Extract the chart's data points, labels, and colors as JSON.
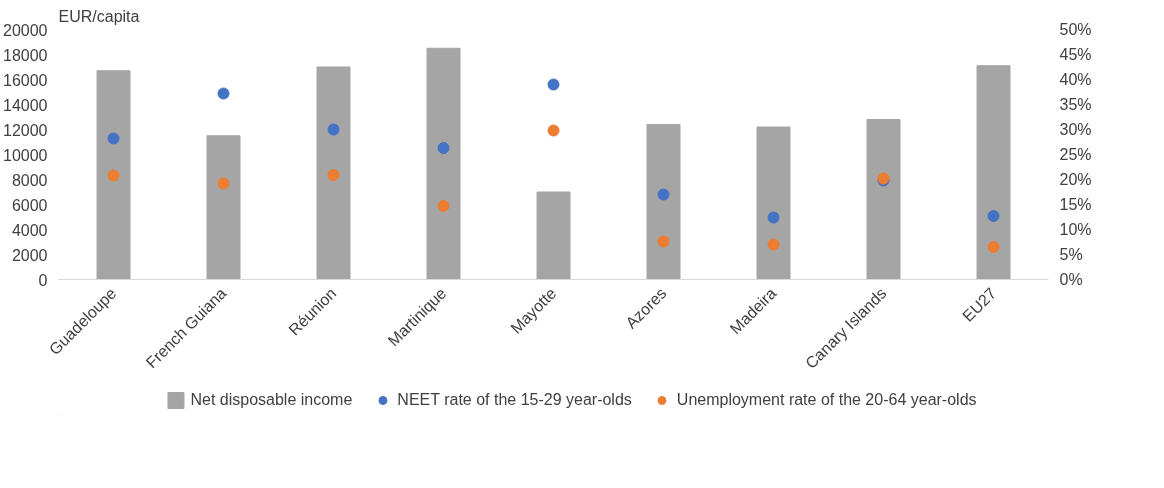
{
  "chart_data": {
    "type": "bar",
    "ylabel": "EUR/capita",
    "categories": [
      "Guadeloupe",
      "French Guiana",
      "Réunion",
      "Martinique",
      "Mayotte",
      "Azores",
      "Madeira",
      "Canary Islands",
      "EU27"
    ],
    "series": [
      {
        "name": "Net disposable income",
        "color": "#a5a5a5",
        "values": [
          16700,
          11500,
          17000,
          18500,
          7000,
          12400,
          12200,
          12800,
          17100
        ]
      },
      {
        "name": "NEET rate of the 15-29 year-olds",
        "color": "#4472c4",
        "type": "scatter",
        "axis": "y2",
        "values": [
          28.2,
          37.2,
          30.0,
          26.3,
          39.0,
          17.0,
          12.4,
          19.8,
          12.7
        ]
      },
      {
        "name": "Unemployment rate of the 20-64 year-olds",
        "color": "#ed7d31",
        "type": "scatter",
        "axis": "y2",
        "values": [
          20.8,
          19.2,
          20.9,
          14.7,
          29.8,
          7.6,
          7.0,
          20.2,
          6.5
        ]
      }
    ],
    "ylim": [
      0,
      20000
    ],
    "yticks": [
      0,
      2000,
      4000,
      6000,
      8000,
      10000,
      12000,
      14000,
      16000,
      18000,
      20000
    ],
    "y2lim": [
      0,
      50
    ],
    "y2ticks": [
      {
        "value": 0,
        "label": "0%"
      },
      {
        "value": 5,
        "label": "5%"
      },
      {
        "value": 10,
        "label": "10%"
      },
      {
        "value": 15,
        "label": "15%"
      },
      {
        "value": 20,
        "label": "20%"
      },
      {
        "value": 25,
        "label": "25%"
      },
      {
        "value": 30,
        "label": "30%"
      },
      {
        "value": 35,
        "label": "35%"
      },
      {
        "value": 40,
        "label": "40%"
      },
      {
        "value": 45,
        "label": "45%"
      },
      {
        "value": 50,
        "label": "50%"
      }
    ],
    "grid": false,
    "legend": "bottom",
    "marker": "circle"
  }
}
